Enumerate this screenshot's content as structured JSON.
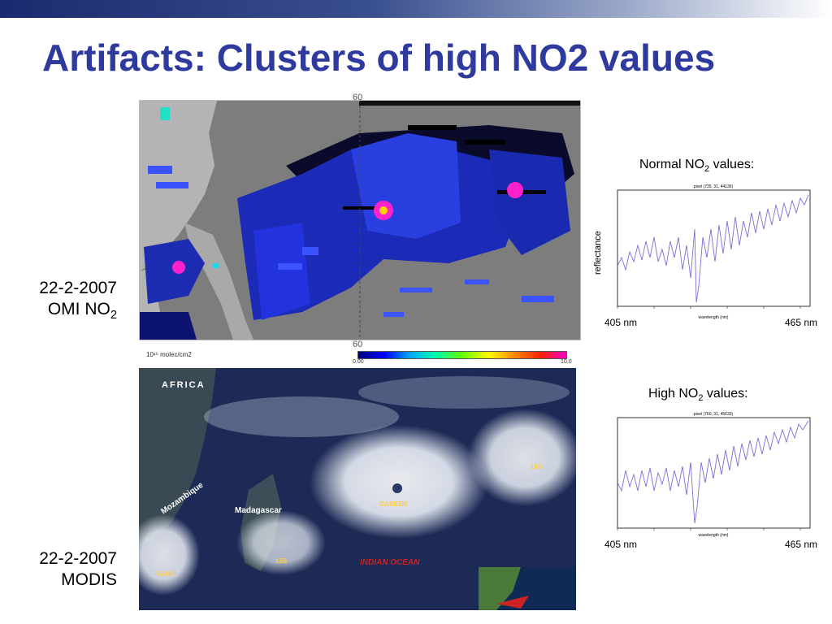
{
  "slide": {
    "title": "Artifacts: Clusters of high NO2 values"
  },
  "omi": {
    "date": "22-2-2007",
    "label_main": "OMI NO",
    "label_sub": "2",
    "tick_top": "60",
    "tick_bottom": "60",
    "units": "10¹⁵ molec/cm2",
    "scale_min": "0.00",
    "scale_max": "10.0",
    "scale_colors": [
      "#000080",
      "#0000ff",
      "#00aaff",
      "#00ffaa",
      "#66ff00",
      "#ffff00",
      "#ff8800",
      "#ff2200",
      "#ff00cc"
    ]
  },
  "modis": {
    "date": "22-2-2007",
    "label": "MODIS",
    "region_labels": {
      "africa": "AFRICA",
      "mozambique": "Mozambique",
      "madagascar": "Madagascar",
      "indian_ocean": "INDIAN OCEAN",
      "favio": "FAVIO",
      "gamede": "GAMEDE",
      "storm_16s": "16S",
      "storm_15s": "15S"
    }
  },
  "normal_spectrum": {
    "title_pre": "Normal NO",
    "title_sub": "2",
    "title_post": " values:",
    "ylabel": "reflectance",
    "x_start": "405 nm",
    "x_end": "465 nm",
    "plot_header": "pixel (735, 31, 44136)",
    "x_axis_label": "wavelength (nm)"
  },
  "high_spectrum": {
    "title_pre": "High NO",
    "title_sub": "2",
    "title_post": " values:",
    "x_start": "405 nm",
    "x_end": "465 nm",
    "plot_header": "pixel (760, 31, 45633)",
    "x_axis_label": "wavelength (nm)"
  },
  "colors": {
    "title": "#2e3a9e",
    "spectrum_line": "#7a6fd6",
    "map_land_gray": "#9a9a9a",
    "ocean_dark": "#1c2a55"
  }
}
